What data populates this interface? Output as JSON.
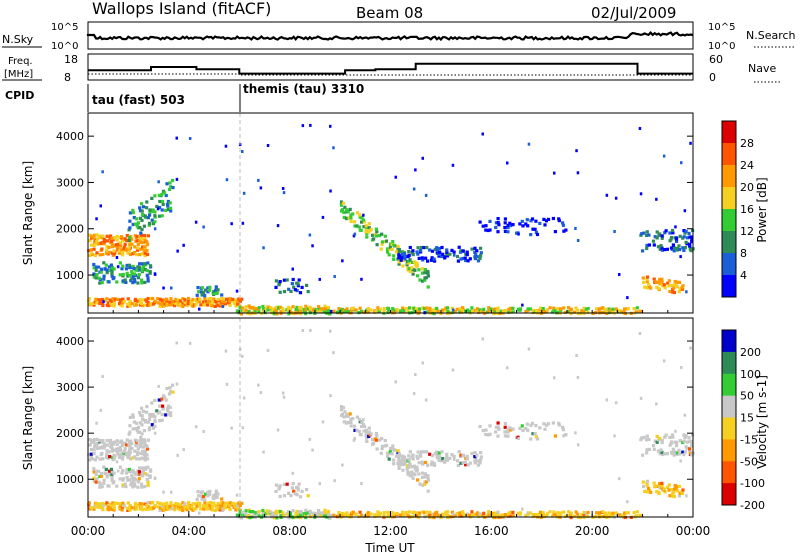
{
  "header": {
    "site": "Wallops Island (fitACF)",
    "beam": "Beam 08",
    "date": "02/Jul/2009"
  },
  "top_panels": {
    "nsky_label": "N.Sky",
    "nsky_ticks": [
      "10^5",
      "10^0"
    ],
    "nsearch_label": "N.Search",
    "nsearch_ticks": [
      "10^5",
      "10^0"
    ],
    "freq_label_1": "Freq.",
    "freq_label_2": "[MHz]",
    "freq_ticks": [
      "18",
      "8"
    ],
    "nave_label": "Nave",
    "nave_ticks": [
      "60",
      "0"
    ],
    "cpid_label": "CPID",
    "cpid_segments": [
      {
        "name": "tau (fast) 503",
        "start_h": 0,
        "end_h": 6
      },
      {
        "name": "themis (tau) 3310",
        "start_h": 6,
        "end_h": 24
      }
    ]
  },
  "chart_data": [
    {
      "type": "heatmap",
      "title": "",
      "ylabel": "Slant Range [km]",
      "xlabel": "",
      "xlim": [
        0,
        24
      ],
      "ylim": [
        180,
        4500
      ],
      "yticks": [
        "1000",
        "2000",
        "3000",
        "4000"
      ],
      "colorbar_label": "Power [dB]",
      "colorbar_ticks": [
        "4",
        "8",
        "12",
        "16",
        "20",
        "24",
        "28"
      ],
      "colorbar_range": [
        0,
        32
      ],
      "colors": [
        "#0000ff",
        "#1a5fd8",
        "#2e8b57",
        "#33cc33",
        "#f5d020",
        "#ff9900",
        "#ff5500",
        "#dd0000"
      ]
    },
    {
      "type": "heatmap",
      "title": "",
      "ylabel": "Slant Range [km]",
      "xlabel": "Time UT",
      "xlim": [
        0,
        24
      ],
      "ylim": [
        180,
        4500
      ],
      "yticks": [
        "1000",
        "2000",
        "3000",
        "4000"
      ],
      "xticks": [
        "00:00",
        "04:00",
        "08:00",
        "12:00",
        "16:00",
        "20:00",
        "00:00"
      ],
      "colorbar_label": "Velocity [m s-1]",
      "colorbar_ticks": [
        "200",
        "100",
        "50",
        "15",
        "-15",
        "-50",
        "-100",
        "-200"
      ],
      "colors": [
        "#0000cc",
        "#2e8b57",
        "#33cc33",
        "#c8c8c8",
        "#f5d020",
        "#ff9900",
        "#ff5500",
        "#dd0000"
      ]
    }
  ]
}
